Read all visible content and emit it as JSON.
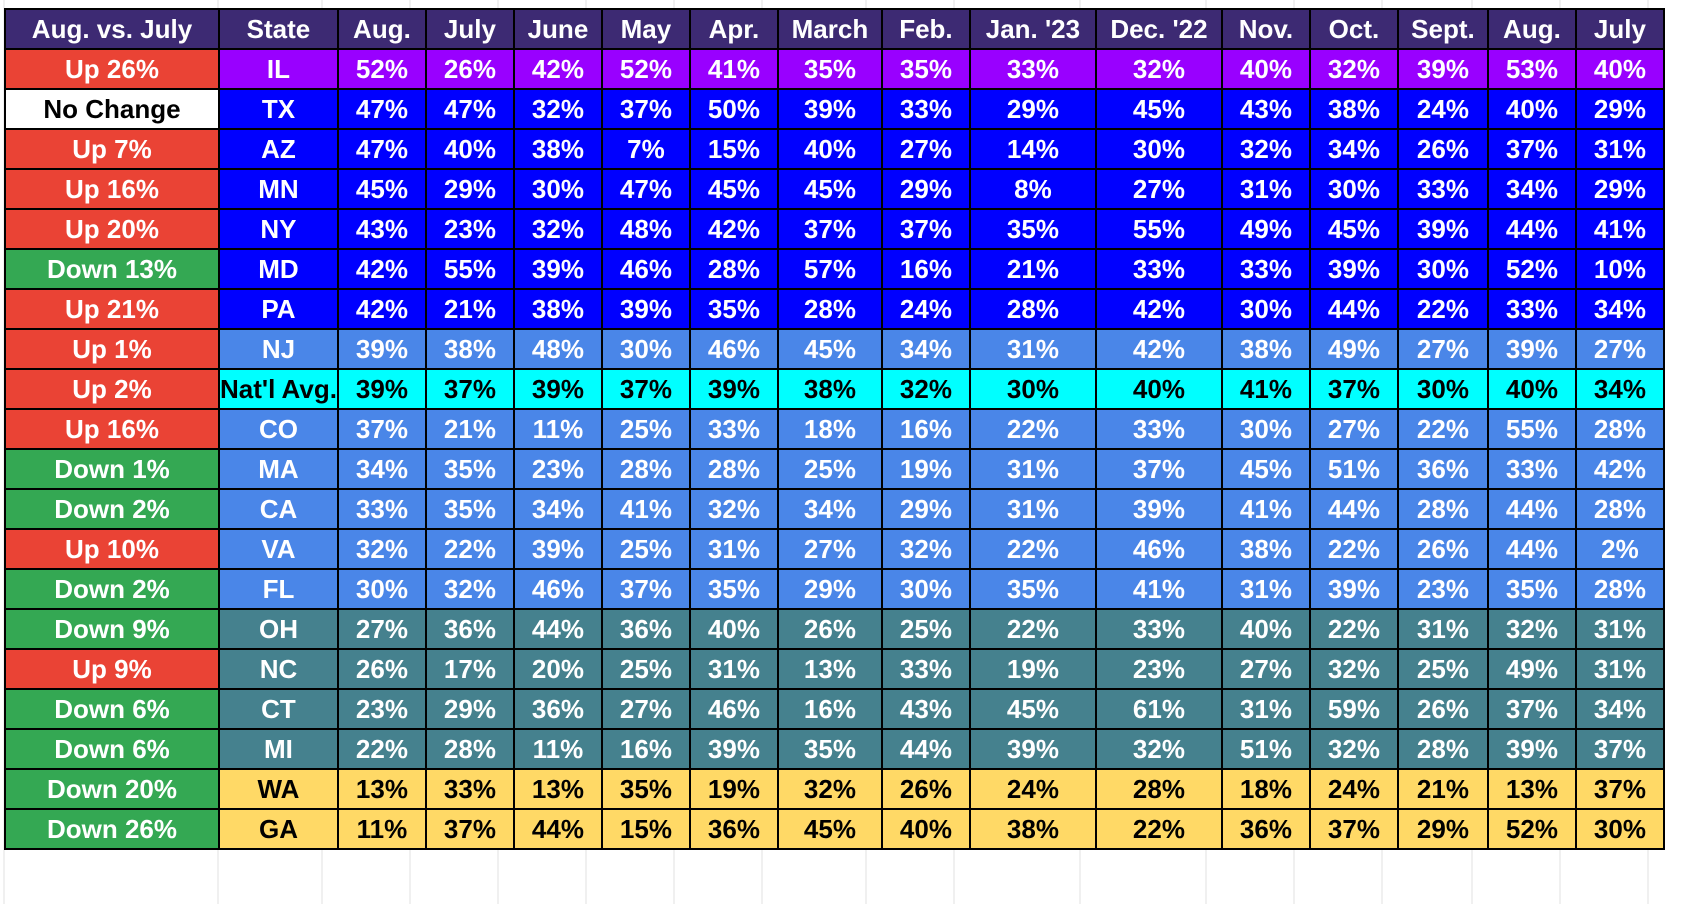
{
  "chart_data": {
    "type": "table",
    "columns": [
      "Aug. vs. July",
      "State",
      "Aug.",
      "July",
      "June",
      "May",
      "Apr.",
      "March",
      "Feb.",
      "Jan. '23",
      "Dec. '22",
      "Nov.",
      "Oct.",
      "Sept.",
      "Aug.",
      "July"
    ],
    "rows": [
      {
        "change": "Up 26%",
        "trend": "up",
        "state": "IL",
        "tier": "violet",
        "values": [
          "52%",
          "26%",
          "42%",
          "52%",
          "41%",
          "35%",
          "35%",
          "33%",
          "32%",
          "40%",
          "32%",
          "39%",
          "53%",
          "40%"
        ]
      },
      {
        "change": "No Change",
        "trend": "none",
        "state": "TX",
        "tier": "blue",
        "values": [
          "47%",
          "47%",
          "32%",
          "37%",
          "50%",
          "39%",
          "33%",
          "29%",
          "45%",
          "43%",
          "38%",
          "24%",
          "40%",
          "29%"
        ]
      },
      {
        "change": "Up 7%",
        "trend": "up",
        "state": "AZ",
        "tier": "blue",
        "values": [
          "47%",
          "40%",
          "38%",
          "7%",
          "15%",
          "40%",
          "27%",
          "14%",
          "30%",
          "32%",
          "34%",
          "26%",
          "37%",
          "31%"
        ]
      },
      {
        "change": "Up 16%",
        "trend": "up",
        "state": "MN",
        "tier": "blue",
        "values": [
          "45%",
          "29%",
          "30%",
          "47%",
          "45%",
          "45%",
          "29%",
          "8%",
          "27%",
          "31%",
          "30%",
          "33%",
          "34%",
          "29%"
        ]
      },
      {
        "change": "Up 20%",
        "trend": "up",
        "state": "NY",
        "tier": "blue",
        "values": [
          "43%",
          "23%",
          "32%",
          "48%",
          "42%",
          "37%",
          "37%",
          "35%",
          "55%",
          "49%",
          "45%",
          "39%",
          "44%",
          "41%"
        ]
      },
      {
        "change": "Down 13%",
        "trend": "down",
        "state": "MD",
        "tier": "blue",
        "values": [
          "42%",
          "55%",
          "39%",
          "46%",
          "28%",
          "57%",
          "16%",
          "21%",
          "33%",
          "33%",
          "39%",
          "30%",
          "52%",
          "10%"
        ]
      },
      {
        "change": "Up 21%",
        "trend": "up",
        "state": "PA",
        "tier": "blue",
        "values": [
          "42%",
          "21%",
          "38%",
          "39%",
          "35%",
          "28%",
          "24%",
          "28%",
          "42%",
          "30%",
          "44%",
          "22%",
          "33%",
          "34%"
        ]
      },
      {
        "change": "Up 1%",
        "trend": "up",
        "state": "NJ",
        "tier": "light",
        "values": [
          "39%",
          "38%",
          "48%",
          "30%",
          "46%",
          "45%",
          "34%",
          "31%",
          "42%",
          "38%",
          "49%",
          "27%",
          "39%",
          "27%"
        ]
      },
      {
        "change": "Up 2%",
        "trend": "up",
        "state": "Nat'l Avg.",
        "tier": "avg",
        "values": [
          "39%",
          "37%",
          "39%",
          "37%",
          "39%",
          "38%",
          "32%",
          "30%",
          "40%",
          "41%",
          "37%",
          "30%",
          "40%",
          "34%"
        ]
      },
      {
        "change": "Up 16%",
        "trend": "up",
        "state": "CO",
        "tier": "light",
        "values": [
          "37%",
          "21%",
          "11%",
          "25%",
          "33%",
          "18%",
          "16%",
          "22%",
          "33%",
          "30%",
          "27%",
          "22%",
          "55%",
          "28%"
        ]
      },
      {
        "change": "Down 1%",
        "trend": "down",
        "state": "MA",
        "tier": "light",
        "values": [
          "34%",
          "35%",
          "23%",
          "28%",
          "28%",
          "25%",
          "19%",
          "31%",
          "37%",
          "45%",
          "51%",
          "36%",
          "33%",
          "42%"
        ]
      },
      {
        "change": "Down 2%",
        "trend": "down",
        "state": "CA",
        "tier": "light",
        "values": [
          "33%",
          "35%",
          "34%",
          "41%",
          "32%",
          "34%",
          "29%",
          "31%",
          "39%",
          "41%",
          "44%",
          "28%",
          "44%",
          "28%"
        ]
      },
      {
        "change": "Up 10%",
        "trend": "up",
        "state": "VA",
        "tier": "light",
        "values": [
          "32%",
          "22%",
          "39%",
          "25%",
          "31%",
          "27%",
          "32%",
          "22%",
          "46%",
          "38%",
          "22%",
          "26%",
          "44%",
          "2%"
        ]
      },
      {
        "change": "Down 2%",
        "trend": "down",
        "state": "FL",
        "tier": "light",
        "values": [
          "30%",
          "32%",
          "46%",
          "37%",
          "35%",
          "29%",
          "30%",
          "35%",
          "41%",
          "31%",
          "39%",
          "23%",
          "35%",
          "28%"
        ]
      },
      {
        "change": "Down 9%",
        "trend": "down",
        "state": "OH",
        "tier": "teal",
        "values": [
          "27%",
          "36%",
          "44%",
          "36%",
          "40%",
          "26%",
          "25%",
          "22%",
          "33%",
          "40%",
          "22%",
          "31%",
          "32%",
          "31%"
        ]
      },
      {
        "change": "Up 9%",
        "trend": "up",
        "state": "NC",
        "tier": "teal",
        "values": [
          "26%",
          "17%",
          "20%",
          "25%",
          "31%",
          "13%",
          "33%",
          "19%",
          "23%",
          "27%",
          "32%",
          "25%",
          "49%",
          "31%"
        ]
      },
      {
        "change": "Down 6%",
        "trend": "down",
        "state": "CT",
        "tier": "teal",
        "values": [
          "23%",
          "29%",
          "36%",
          "27%",
          "46%",
          "16%",
          "43%",
          "45%",
          "61%",
          "31%",
          "59%",
          "26%",
          "37%",
          "34%"
        ]
      },
      {
        "change": "Down 6%",
        "trend": "down",
        "state": "MI",
        "tier": "teal",
        "values": [
          "22%",
          "28%",
          "11%",
          "16%",
          "39%",
          "35%",
          "44%",
          "39%",
          "32%",
          "51%",
          "32%",
          "28%",
          "39%",
          "37%"
        ]
      },
      {
        "change": "Down 20%",
        "trend": "down",
        "state": "WA",
        "tier": "yellow",
        "values": [
          "13%",
          "33%",
          "13%",
          "35%",
          "19%",
          "32%",
          "26%",
          "24%",
          "28%",
          "18%",
          "24%",
          "21%",
          "13%",
          "37%"
        ]
      },
      {
        "change": "Down 26%",
        "trend": "down",
        "state": "GA",
        "tier": "yellow",
        "values": [
          "11%",
          "37%",
          "44%",
          "15%",
          "36%",
          "45%",
          "40%",
          "38%",
          "22%",
          "36%",
          "37%",
          "29%",
          "52%",
          "30%"
        ]
      }
    ]
  },
  "colors": {
    "header_bg": "#3d2a73",
    "up": "#ea4335",
    "down": "#34a853",
    "none": "#ffffff",
    "violet": "#9900ff",
    "blue": "#0000ff",
    "light": "#4a86e8",
    "avg": "#00ffff",
    "teal": "#45818e",
    "yellow": "#ffd966"
  }
}
